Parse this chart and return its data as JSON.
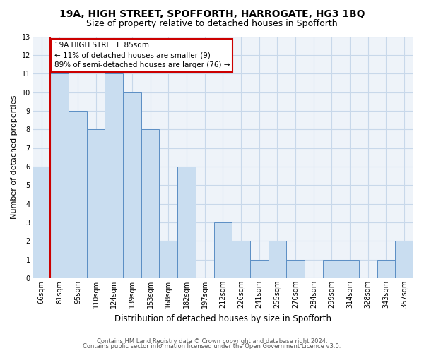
{
  "title": "19A, HIGH STREET, SPOFFORTH, HARROGATE, HG3 1BQ",
  "subtitle": "Size of property relative to detached houses in Spofforth",
  "xlabel": "Distribution of detached houses by size in Spofforth",
  "ylabel": "Number of detached properties",
  "categories": [
    "66sqm",
    "81sqm",
    "95sqm",
    "110sqm",
    "124sqm",
    "139sqm",
    "153sqm",
    "168sqm",
    "182sqm",
    "197sqm",
    "212sqm",
    "226sqm",
    "241sqm",
    "255sqm",
    "270sqm",
    "284sqm",
    "299sqm",
    "314sqm",
    "328sqm",
    "343sqm",
    "357sqm"
  ],
  "values": [
    6,
    11,
    9,
    8,
    11,
    10,
    8,
    2,
    6,
    0,
    3,
    2,
    1,
    2,
    1,
    0,
    1,
    1,
    0,
    1,
    2
  ],
  "bar_color": "#c9ddf0",
  "bar_edge_color": "#5b8ec4",
  "subject_line_index": 1,
  "subject_line_color": "#cc0000",
  "annotation_line1": "19A HIGH STREET: 85sqm",
  "annotation_line2": "← 11% of detached houses are smaller (9)",
  "annotation_line3": "89% of semi-detached houses are larger (76) →",
  "annotation_box_color": "#cc0000",
  "ylim": [
    0,
    13
  ],
  "yticks": [
    0,
    1,
    2,
    3,
    4,
    5,
    6,
    7,
    8,
    9,
    10,
    11,
    12,
    13
  ],
  "footer1": "Contains HM Land Registry data © Crown copyright and database right 2024.",
  "footer2": "Contains public sector information licensed under the Open Government Licence v3.0.",
  "grid_color": "#c8d8ea",
  "bg_color": "#eef3f9",
  "title_fontsize": 10,
  "subtitle_fontsize": 9,
  "tick_fontsize": 7,
  "ylabel_fontsize": 8,
  "xlabel_fontsize": 8.5,
  "footer_fontsize": 6,
  "annot_fontsize": 7.5
}
